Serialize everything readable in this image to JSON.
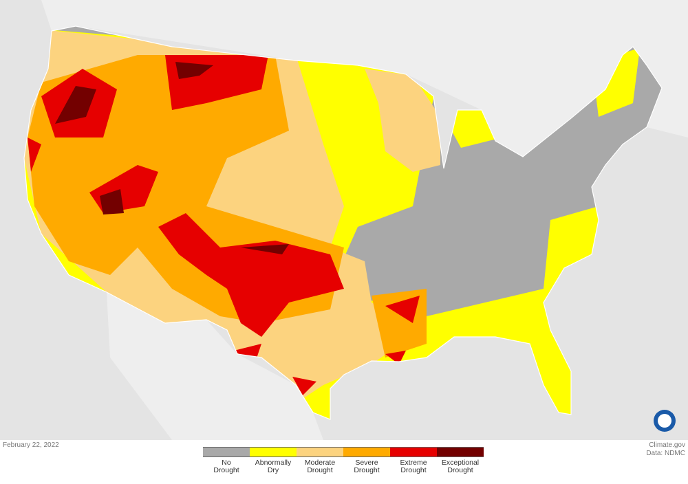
{
  "date": "February 22, 2022",
  "legend": [
    {
      "label": "No Drought",
      "color": "#a9a9a9"
    },
    {
      "label": "Abnormally Dry",
      "color": "#ffff00"
    },
    {
      "label": "Moderate Drought",
      "color": "#fcd37f"
    },
    {
      "label": "Severe Drought",
      "color": "#ffaa00"
    },
    {
      "label": "Extreme Drought",
      "color": "#e60000"
    },
    {
      "label": "Exceptional Drought",
      "color": "#730000"
    }
  ],
  "credits": [
    "Climate.gov",
    "Data: NDMC"
  ]
}
